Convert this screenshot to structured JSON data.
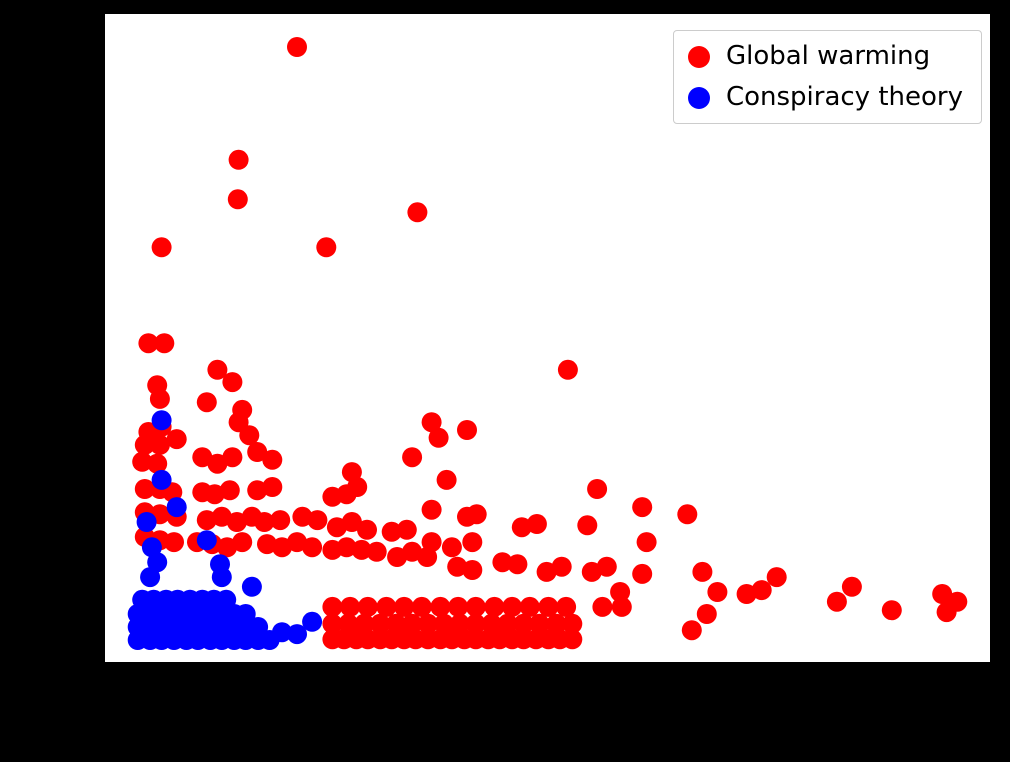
{
  "figure": {
    "background_color": "#000000",
    "plot_background_color": "#ffffff"
  },
  "legend": {
    "items": [
      {
        "label": "Global warming",
        "color": "#ff0000"
      },
      {
        "label": "Conspiracy theory",
        "color": "#0000ff"
      }
    ],
    "position": "upper right"
  },
  "chart_data": {
    "type": "scatter",
    "title": "",
    "xlabel": "",
    "ylabel": "",
    "xlim": [
      0,
      1
    ],
    "ylim": [
      0,
      1
    ],
    "grid": false,
    "legend_position": "upper right",
    "series": [
      {
        "name": "Global warming",
        "color": "#ff0000",
        "points": [
          [
            0.217,
            0.949
          ],
          [
            0.151,
            0.775
          ],
          [
            0.15,
            0.714
          ],
          [
            0.353,
            0.694
          ],
          [
            0.25,
            0.64
          ],
          [
            0.064,
            0.64
          ],
          [
            0.049,
            0.492
          ],
          [
            0.067,
            0.492
          ],
          [
            0.523,
            0.451
          ],
          [
            0.059,
            0.427
          ],
          [
            0.062,
            0.406
          ],
          [
            0.127,
            0.451
          ],
          [
            0.144,
            0.432
          ],
          [
            0.115,
            0.401
          ],
          [
            0.155,
            0.389
          ],
          [
            0.049,
            0.355
          ],
          [
            0.064,
            0.363
          ],
          [
            0.045,
            0.335
          ],
          [
            0.062,
            0.335
          ],
          [
            0.081,
            0.344
          ],
          [
            0.151,
            0.37
          ],
          [
            0.163,
            0.35
          ],
          [
            0.369,
            0.37
          ],
          [
            0.377,
            0.346
          ],
          [
            0.409,
            0.358
          ],
          [
            0.11,
            0.316
          ],
          [
            0.127,
            0.306
          ],
          [
            0.144,
            0.316
          ],
          [
            0.172,
            0.324
          ],
          [
            0.189,
            0.312
          ],
          [
            0.042,
            0.309
          ],
          [
            0.059,
            0.306
          ],
          [
            0.347,
            0.316
          ],
          [
            0.386,
            0.281
          ],
          [
            0.279,
            0.293
          ],
          [
            0.285,
            0.27
          ],
          [
            0.045,
            0.267
          ],
          [
            0.062,
            0.267
          ],
          [
            0.076,
            0.262
          ],
          [
            0.11,
            0.262
          ],
          [
            0.124,
            0.259
          ],
          [
            0.141,
            0.265
          ],
          [
            0.172,
            0.265
          ],
          [
            0.189,
            0.27
          ],
          [
            0.257,
            0.255
          ],
          [
            0.273,
            0.259
          ],
          [
            0.556,
            0.267
          ],
          [
            0.369,
            0.235
          ],
          [
            0.409,
            0.224
          ],
          [
            0.42,
            0.228
          ],
          [
            0.471,
            0.208
          ],
          [
            0.488,
            0.213
          ],
          [
            0.545,
            0.211
          ],
          [
            0.607,
            0.239
          ],
          [
            0.612,
            0.185
          ],
          [
            0.658,
            0.228
          ],
          [
            0.045,
            0.231
          ],
          [
            0.062,
            0.228
          ],
          [
            0.081,
            0.224
          ],
          [
            0.115,
            0.219
          ],
          [
            0.132,
            0.224
          ],
          [
            0.149,
            0.216
          ],
          [
            0.166,
            0.224
          ],
          [
            0.18,
            0.216
          ],
          [
            0.198,
            0.219
          ],
          [
            0.223,
            0.224
          ],
          [
            0.24,
            0.219
          ],
          [
            0.262,
            0.208
          ],
          [
            0.279,
            0.216
          ],
          [
            0.296,
            0.204
          ],
          [
            0.324,
            0.201
          ],
          [
            0.341,
            0.204
          ],
          [
            0.369,
            0.185
          ],
          [
            0.392,
            0.177
          ],
          [
            0.415,
            0.185
          ],
          [
            0.045,
            0.193
          ],
          [
            0.062,
            0.188
          ],
          [
            0.078,
            0.185
          ],
          [
            0.104,
            0.185
          ],
          [
            0.121,
            0.182
          ],
          [
            0.138,
            0.177
          ],
          [
            0.155,
            0.185
          ],
          [
            0.183,
            0.182
          ],
          [
            0.2,
            0.177
          ],
          [
            0.217,
            0.185
          ],
          [
            0.234,
            0.177
          ],
          [
            0.257,
            0.173
          ],
          [
            0.273,
            0.177
          ],
          [
            0.29,
            0.173
          ],
          [
            0.307,
            0.17
          ],
          [
            0.33,
            0.162
          ],
          [
            0.347,
            0.17
          ],
          [
            0.364,
            0.162
          ],
          [
            0.398,
            0.147
          ],
          [
            0.415,
            0.142
          ],
          [
            0.449,
            0.154
          ],
          [
            0.466,
            0.151
          ],
          [
            0.499,
            0.139
          ],
          [
            0.516,
            0.147
          ],
          [
            0.55,
            0.139
          ],
          [
            0.567,
            0.147
          ],
          [
            0.582,
            0.108
          ],
          [
            0.607,
            0.136
          ],
          [
            0.675,
            0.139
          ],
          [
            0.692,
            0.108
          ],
          [
            0.725,
            0.105
          ],
          [
            0.742,
            0.111
          ],
          [
            0.759,
            0.131
          ],
          [
            0.827,
            0.093
          ],
          [
            0.844,
            0.116
          ],
          [
            0.889,
            0.08
          ],
          [
            0.946,
            0.105
          ],
          [
            0.951,
            0.077
          ],
          [
            0.963,
            0.093
          ],
          [
            0.257,
            0.085
          ],
          [
            0.277,
            0.085
          ],
          [
            0.297,
            0.085
          ],
          [
            0.318,
            0.085
          ],
          [
            0.338,
            0.085
          ],
          [
            0.358,
            0.085
          ],
          [
            0.379,
            0.085
          ],
          [
            0.399,
            0.085
          ],
          [
            0.419,
            0.085
          ],
          [
            0.44,
            0.085
          ],
          [
            0.46,
            0.085
          ],
          [
            0.48,
            0.085
          ],
          [
            0.501,
            0.085
          ],
          [
            0.521,
            0.085
          ],
          [
            0.562,
            0.085
          ],
          [
            0.584,
            0.085
          ],
          [
            0.257,
            0.059
          ],
          [
            0.275,
            0.059
          ],
          [
            0.293,
            0.059
          ],
          [
            0.311,
            0.059
          ],
          [
            0.329,
            0.059
          ],
          [
            0.347,
            0.059
          ],
          [
            0.365,
            0.059
          ],
          [
            0.383,
            0.059
          ],
          [
            0.401,
            0.059
          ],
          [
            0.419,
            0.059
          ],
          [
            0.437,
            0.059
          ],
          [
            0.455,
            0.059
          ],
          [
            0.473,
            0.059
          ],
          [
            0.491,
            0.059
          ],
          [
            0.51,
            0.059
          ],
          [
            0.528,
            0.059
          ],
          [
            0.663,
            0.049
          ],
          [
            0.68,
            0.074
          ],
          [
            0.257,
            0.035
          ],
          [
            0.27,
            0.035
          ],
          [
            0.284,
            0.035
          ],
          [
            0.297,
            0.035
          ],
          [
            0.311,
            0.035
          ],
          [
            0.324,
            0.035
          ],
          [
            0.338,
            0.035
          ],
          [
            0.351,
            0.035
          ],
          [
            0.365,
            0.035
          ],
          [
            0.379,
            0.035
          ],
          [
            0.392,
            0.035
          ],
          [
            0.406,
            0.035
          ],
          [
            0.419,
            0.035
          ],
          [
            0.433,
            0.035
          ],
          [
            0.446,
            0.035
          ],
          [
            0.46,
            0.035
          ],
          [
            0.473,
            0.035
          ],
          [
            0.487,
            0.035
          ],
          [
            0.501,
            0.035
          ],
          [
            0.514,
            0.035
          ],
          [
            0.528,
            0.035
          ]
        ]
      },
      {
        "name": "Conspiracy theory",
        "color": "#0000ff",
        "points": [
          [
            0.064,
            0.373
          ],
          [
            0.064,
            0.281
          ],
          [
            0.081,
            0.239
          ],
          [
            0.047,
            0.216
          ],
          [
            0.053,
            0.177
          ],
          [
            0.059,
            0.154
          ],
          [
            0.051,
            0.131
          ],
          [
            0.115,
            0.188
          ],
          [
            0.13,
            0.151
          ],
          [
            0.132,
            0.131
          ],
          [
            0.166,
            0.116
          ],
          [
            0.2,
            0.046
          ],
          [
            0.217,
            0.043
          ],
          [
            0.234,
            0.062
          ],
          [
            0.042,
            0.096
          ],
          [
            0.055,
            0.096
          ],
          [
            0.069,
            0.096
          ],
          [
            0.082,
            0.096
          ],
          [
            0.096,
            0.096
          ],
          [
            0.11,
            0.096
          ],
          [
            0.123,
            0.096
          ],
          [
            0.137,
            0.096
          ],
          [
            0.037,
            0.074
          ],
          [
            0.051,
            0.074
          ],
          [
            0.064,
            0.074
          ],
          [
            0.078,
            0.074
          ],
          [
            0.092,
            0.074
          ],
          [
            0.105,
            0.074
          ],
          [
            0.119,
            0.074
          ],
          [
            0.132,
            0.074
          ],
          [
            0.146,
            0.074
          ],
          [
            0.159,
            0.074
          ],
          [
            0.037,
            0.054
          ],
          [
            0.051,
            0.054
          ],
          [
            0.064,
            0.054
          ],
          [
            0.078,
            0.054
          ],
          [
            0.092,
            0.054
          ],
          [
            0.105,
            0.054
          ],
          [
            0.119,
            0.054
          ],
          [
            0.132,
            0.054
          ],
          [
            0.146,
            0.054
          ],
          [
            0.159,
            0.054
          ],
          [
            0.173,
            0.054
          ],
          [
            0.037,
            0.034
          ],
          [
            0.051,
            0.034
          ],
          [
            0.064,
            0.034
          ],
          [
            0.078,
            0.034
          ],
          [
            0.092,
            0.034
          ],
          [
            0.105,
            0.034
          ],
          [
            0.119,
            0.034
          ],
          [
            0.132,
            0.034
          ],
          [
            0.146,
            0.034
          ],
          [
            0.159,
            0.034
          ],
          [
            0.173,
            0.034
          ],
          [
            0.186,
            0.034
          ]
        ]
      }
    ]
  }
}
